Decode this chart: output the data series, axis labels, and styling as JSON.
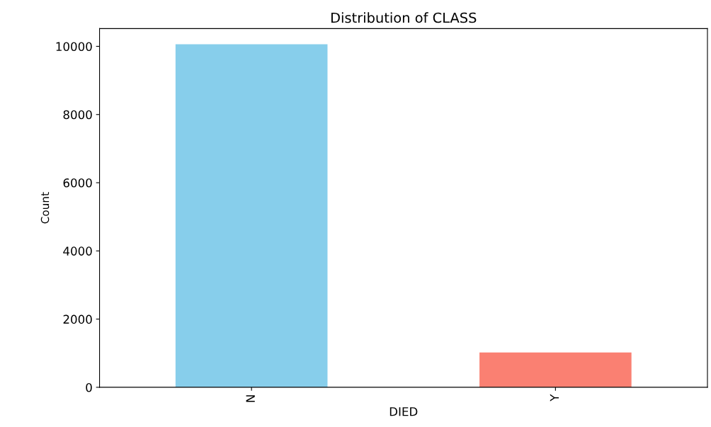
{
  "chart_data": {
    "type": "bar",
    "title": "Distribution of CLASS",
    "xlabel": "DIED",
    "ylabel": "Count",
    "categories": [
      "N",
      "Y"
    ],
    "values": [
      10060,
      1020
    ],
    "colors": [
      "#87ceeb",
      "#fa8072"
    ],
    "ylim": [
      0,
      10520
    ],
    "yticks": [
      0,
      2000,
      4000,
      6000,
      8000,
      10000
    ],
    "grid": false,
    "legend": false
  }
}
